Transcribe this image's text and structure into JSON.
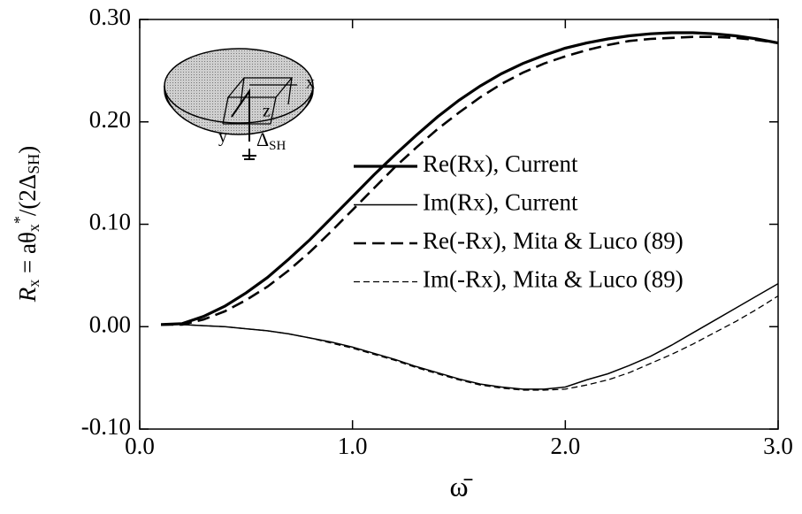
{
  "chart_data": {
    "type": "line",
    "ylabel": [
      "R",
      "x",
      " = aθ",
      "x",
      "*",
      "/(2Δ",
      "SH",
      ")"
    ],
    "xlabel": "ω̄",
    "inset_labels": {
      "x": "x",
      "y": "y",
      "z": "z",
      "delta": "Δ",
      "delta_sub": "SH"
    },
    "x": [
      0.1,
      0.2,
      0.3,
      0.4,
      0.5,
      0.6,
      0.7,
      0.8,
      0.9,
      1.0,
      1.1,
      1.2,
      1.3,
      1.4,
      1.5,
      1.6,
      1.7,
      1.8,
      1.9,
      2.0,
      2.1,
      2.2,
      2.3,
      2.4,
      2.5,
      2.6,
      2.7,
      2.8,
      2.9,
      3.0
    ],
    "series": [
      {
        "name": "Re(Rx), Current",
        "color": "#000000",
        "line_width": 3.2,
        "dash": "none",
        "values": [
          0.002,
          0.003,
          0.01,
          0.02,
          0.033,
          0.048,
          0.066,
          0.085,
          0.106,
          0.127,
          0.148,
          0.168,
          0.187,
          0.205,
          0.221,
          0.235,
          0.247,
          0.257,
          0.265,
          0.272,
          0.277,
          0.281,
          0.284,
          0.286,
          0.287,
          0.287,
          0.286,
          0.284,
          0.281,
          0.277
        ]
      },
      {
        "name": "Im(Rx), Current",
        "color": "#000000",
        "line_width": 1.5,
        "dash": "none",
        "values": [
          0.002,
          0.002,
          0.001,
          0,
          -0.002,
          -0.004,
          -0.007,
          -0.011,
          -0.015,
          -0.02,
          -0.026,
          -0.032,
          -0.039,
          -0.045,
          -0.051,
          -0.056,
          -0.059,
          -0.061,
          -0.061,
          -0.059,
          -0.052,
          -0.046,
          -0.038,
          -0.029,
          -0.018,
          -0.006,
          0.006,
          0.018,
          0.03,
          0.042
        ]
      },
      {
        "name": "Re(-Rx), Mita & Luco (89)",
        "color": "#000000",
        "line_width": 2.6,
        "dash": "14 7",
        "values": [
          0.002,
          0.002,
          0.007,
          0.015,
          0.026,
          0.039,
          0.055,
          0.073,
          0.093,
          0.114,
          0.135,
          0.156,
          0.175,
          0.193,
          0.209,
          0.224,
          0.237,
          0.248,
          0.257,
          0.264,
          0.27,
          0.275,
          0.279,
          0.281,
          0.282,
          0.283,
          0.283,
          0.282,
          0.28,
          0.277
        ]
      },
      {
        "name": "Im(-Rx), Mita & Luco (89)",
        "color": "#000000",
        "line_width": 1.3,
        "dash": "7 4",
        "values": [
          0.002,
          0.002,
          0.001,
          0,
          -0.002,
          -0.004,
          -0.007,
          -0.011,
          -0.016,
          -0.021,
          -0.027,
          -0.033,
          -0.04,
          -0.046,
          -0.052,
          -0.057,
          -0.06,
          -0.062,
          -0.062,
          -0.061,
          -0.057,
          -0.052,
          -0.045,
          -0.036,
          -0.027,
          -0.017,
          -0.006,
          0.005,
          0.017,
          0.03
        ]
      }
    ],
    "xlim": [
      0,
      3
    ],
    "ylim": [
      -0.1,
      0.3
    ],
    "xticks": [
      {
        "value": 0,
        "label": "0.0"
      },
      {
        "value": 1,
        "label": "1.0"
      },
      {
        "value": 2,
        "label": "2.0"
      },
      {
        "value": 3,
        "label": "3.0"
      }
    ],
    "yticks": [
      {
        "value": -0.1,
        "label": "-0.10"
      },
      {
        "value": 0,
        "label": "0.00"
      },
      {
        "value": 0.1,
        "label": "0.10"
      },
      {
        "value": 0.2,
        "label": "0.20"
      },
      {
        "value": 0.3,
        "label": "0.30"
      }
    ],
    "legend_position": "center right"
  }
}
